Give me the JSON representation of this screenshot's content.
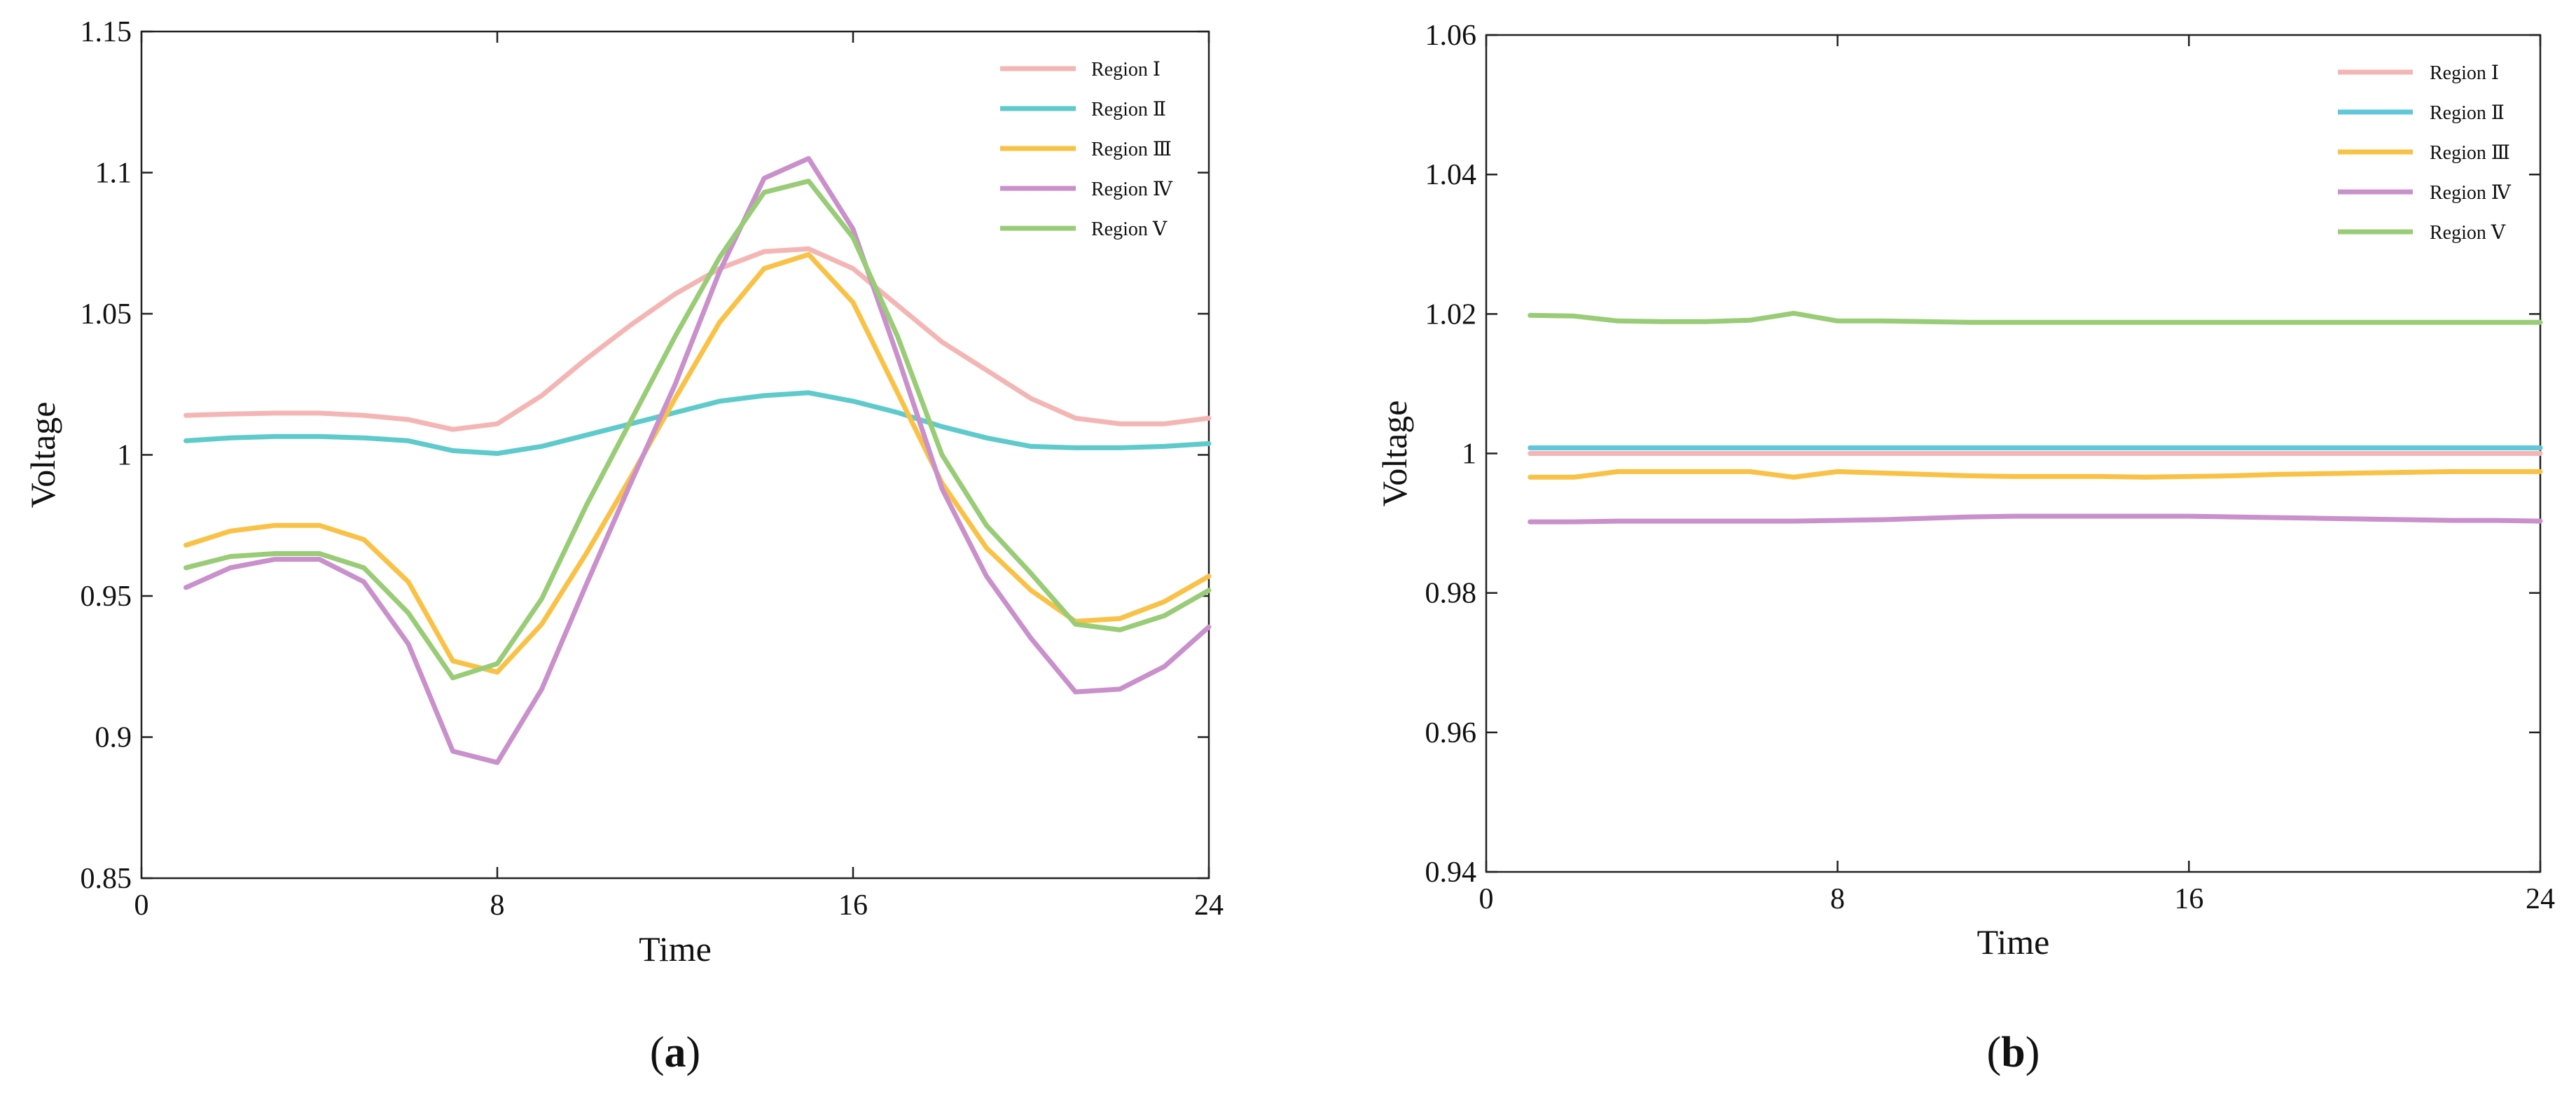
{
  "panels": [
    {
      "label_open": "(",
      "label_letter": "a",
      "label_close": ")",
      "chart_data": {
        "type": "line",
        "xlabel": "Time",
        "ylabel": "Voltage",
        "xlim": [
          0,
          24
        ],
        "ylim": [
          0.85,
          1.15
        ],
        "xticks": [
          0,
          8,
          16,
          24
        ],
        "xtick_labels": [
          "0",
          "8",
          "16",
          "24"
        ],
        "yticks": [
          0.85,
          0.9,
          0.95,
          1.0,
          1.05,
          1.1,
          1.15
        ],
        "ytick_labels": [
          "0.85",
          "0.9",
          "0.95",
          "1",
          "1.05",
          "1.1",
          "1.15"
        ],
        "legend_position": "top-right",
        "x": [
          1,
          2,
          3,
          4,
          5,
          6,
          7,
          8,
          9,
          10,
          11,
          12,
          13,
          14,
          15,
          16,
          17,
          18,
          19,
          20,
          21,
          22,
          23,
          24
        ],
        "series": [
          {
            "name": "Region Ⅰ",
            "color": "#f4b6b4",
            "values": [
              1.014,
              1.0145,
              1.0148,
              1.0148,
              1.014,
              1.0125,
              1.009,
              1.011,
              1.021,
              1.034,
              1.046,
              1.057,
              1.066,
              1.072,
              1.073,
              1.066,
              1.053,
              1.04,
              1.03,
              1.02,
              1.013,
              1.011,
              1.011,
              1.013
            ]
          },
          {
            "name": "Region Ⅱ",
            "color": "#5ecacc",
            "values": [
              1.005,
              1.006,
              1.0065,
              1.0065,
              1.006,
              1.005,
              1.0015,
              1.0005,
              1.003,
              1.007,
              1.011,
              1.015,
              1.019,
              1.021,
              1.022,
              1.019,
              1.015,
              1.01,
              1.006,
              1.003,
              1.0025,
              1.0025,
              1.003,
              1.004
            ]
          },
          {
            "name": "Region Ⅲ",
            "color": "#f9c246",
            "values": [
              0.968,
              0.973,
              0.975,
              0.975,
              0.97,
              0.955,
              0.927,
              0.923,
              0.94,
              0.965,
              0.992,
              1.02,
              1.047,
              1.066,
              1.071,
              1.054,
              1.022,
              0.99,
              0.967,
              0.952,
              0.941,
              0.942,
              0.948,
              0.957
            ]
          },
          {
            "name": "Region Ⅳ",
            "color": "#c990cc",
            "values": [
              0.953,
              0.96,
              0.963,
              0.963,
              0.955,
              0.933,
              0.895,
              0.891,
              0.917,
              0.954,
              0.99,
              1.025,
              1.065,
              1.098,
              1.105,
              1.08,
              1.035,
              0.988,
              0.957,
              0.935,
              0.916,
              0.917,
              0.925,
              0.939
            ]
          },
          {
            "name": "Region Ⅴ",
            "color": "#99cc76",
            "values": [
              0.96,
              0.964,
              0.965,
              0.965,
              0.96,
              0.944,
              0.921,
              0.926,
              0.949,
              0.982,
              1.012,
              1.042,
              1.07,
              1.093,
              1.097,
              1.077,
              1.042,
              1.0,
              0.975,
              0.958,
              0.94,
              0.938,
              0.943,
              0.952
            ]
          }
        ]
      }
    },
    {
      "label_open": "(",
      "label_letter": "b",
      "label_close": ")",
      "chart_data": {
        "type": "line",
        "xlabel": "Time",
        "ylabel": "Voltage",
        "xlim": [
          0,
          24
        ],
        "ylim": [
          0.94,
          1.06
        ],
        "xticks": [
          0,
          8,
          16,
          24
        ],
        "xtick_labels": [
          "0",
          "8",
          "16",
          "24"
        ],
        "yticks": [
          0.94,
          0.96,
          0.98,
          1.0,
          1.02,
          1.04,
          1.06
        ],
        "ytick_labels": [
          "0.94",
          "0.96",
          "0.98",
          "1",
          "1.02",
          "1.04",
          "1.06"
        ],
        "legend_position": "top-right",
        "x": [
          1,
          2,
          3,
          4,
          5,
          6,
          7,
          8,
          9,
          10,
          11,
          12,
          13,
          14,
          15,
          16,
          17,
          18,
          19,
          20,
          21,
          22,
          23,
          24
        ],
        "series": [
          {
            "name": "Region Ⅰ",
            "color": "#f4b6b4",
            "values": [
              1.0,
              1.0,
              1.0,
              1.0,
              1.0,
              1.0,
              1.0,
              1.0,
              1.0,
              1.0,
              1.0,
              1.0,
              1.0,
              1.0,
              1.0,
              1.0,
              1.0,
              1.0,
              1.0,
              1.0,
              1.0,
              1.0,
              1.0,
              1.0
            ]
          },
          {
            "name": "Region Ⅱ",
            "color": "#5ec8da",
            "values": [
              1.0008,
              1.0008,
              1.0008,
              1.0008,
              1.0008,
              1.0008,
              1.0008,
              1.0008,
              1.0008,
              1.0008,
              1.0008,
              1.0008,
              1.0008,
              1.0008,
              1.0008,
              1.0008,
              1.0008,
              1.0008,
              1.0008,
              1.0008,
              1.0008,
              1.0008,
              1.0008,
              1.0008
            ]
          },
          {
            "name": "Region Ⅲ",
            "color": "#f9c246",
            "values": [
              0.9966,
              0.9966,
              0.9974,
              0.9974,
              0.9974,
              0.9974,
              0.9966,
              0.9974,
              0.9972,
              0.997,
              0.9968,
              0.9967,
              0.9967,
              0.9967,
              0.9966,
              0.9967,
              0.9968,
              0.997,
              0.9971,
              0.9972,
              0.9973,
              0.9974,
              0.9974,
              0.9974
            ]
          },
          {
            "name": "Region Ⅳ",
            "color": "#c990cc",
            "values": [
              0.9902,
              0.9902,
              0.9903,
              0.9903,
              0.9903,
              0.9903,
              0.9903,
              0.9904,
              0.9905,
              0.9907,
              0.9909,
              0.991,
              0.991,
              0.991,
              0.991,
              0.991,
              0.9909,
              0.9908,
              0.9907,
              0.9906,
              0.9905,
              0.9904,
              0.9904,
              0.9903
            ]
          },
          {
            "name": "Region Ⅴ",
            "color": "#99cc76",
            "values": [
              1.0198,
              1.0197,
              1.019,
              1.0189,
              1.0189,
              1.0191,
              1.0201,
              1.019,
              1.019,
              1.0189,
              1.0188,
              1.0188,
              1.0188,
              1.0188,
              1.0188,
              1.0188,
              1.0188,
              1.0188,
              1.0188,
              1.0188,
              1.0188,
              1.0188,
              1.0188,
              1.0188
            ]
          }
        ]
      }
    }
  ]
}
